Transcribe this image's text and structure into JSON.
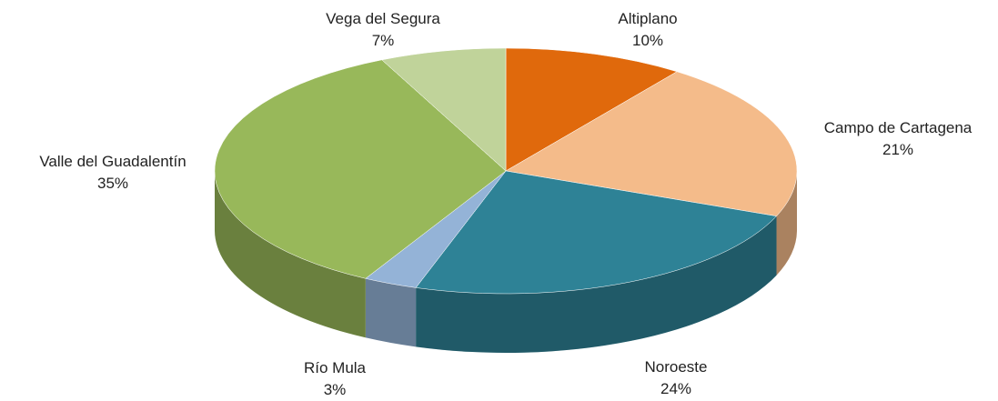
{
  "chart_data": {
    "type": "pie",
    "categories": [
      "Altiplano",
      "Campo de Cartagena",
      "Noroeste",
      "Río Mula",
      "Valle del Guadalentín",
      "Vega del Segura"
    ],
    "values": [
      10,
      21,
      24,
      3,
      35,
      7
    ],
    "value_labels": [
      "10%",
      "21%",
      "24%",
      "3%",
      "35%",
      "7%"
    ],
    "colors": [
      "#e0690c",
      "#f4bb8a",
      "#2e8296",
      "#94b3d7",
      "#98b85a",
      "#c0d39a"
    ]
  }
}
